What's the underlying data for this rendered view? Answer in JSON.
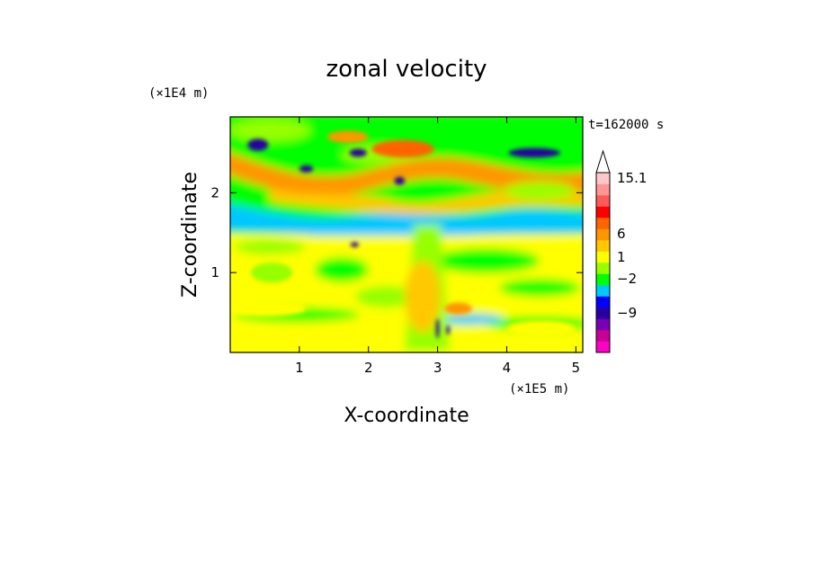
{
  "chart_data": {
    "type": "heatmap",
    "title": "zonal velocity",
    "xlabel": "X-coordinate",
    "ylabel": "Z-coordinate",
    "x_unit": "(×1E5 m)",
    "y_unit": "(×1E4 m)",
    "time_label": "t=162000 s",
    "xlim": [
      0,
      5.1
    ],
    "ylim": [
      0,
      2.95
    ],
    "x_ticks": [
      1,
      2,
      3,
      4,
      5
    ],
    "y_ticks": [
      1,
      2
    ],
    "colorbar": {
      "labeled_levels": [
        {
          "value": 15.1,
          "label": "15.1"
        },
        {
          "value": 6,
          "label": "6"
        },
        {
          "value": 1,
          "label": "1"
        },
        {
          "value": -2,
          "label": "−2"
        },
        {
          "value": -9,
          "label": "−9"
        }
      ],
      "bands_bottom_to_top": [
        "#ff00c8",
        "#c80096",
        "#7800b4",
        "#2800a0",
        "#0000ff",
        "#00c8ff",
        "#00ff00",
        "#96ff00",
        "#ffff00",
        "#ffc800",
        "#ff9600",
        "#ff6400",
        "#ff0000",
        "#ff5a5a",
        "#ff9696",
        "#ffc8c8"
      ],
      "extend_max": true
    },
    "features": [
      {
        "x": 2.5,
        "z": 2.55,
        "w": 0.9,
        "h": 0.22,
        "value": 8
      },
      {
        "x": 1.7,
        "z": 2.7,
        "w": 0.6,
        "h": 0.15,
        "value": 5
      },
      {
        "x": 0.4,
        "z": 2.6,
        "w": 0.3,
        "h": 0.15,
        "value": -10
      },
      {
        "x": 1.1,
        "z": 2.3,
        "w": 0.2,
        "h": 0.09,
        "value": -10
      },
      {
        "x": 1.85,
        "z": 2.5,
        "w": 0.25,
        "h": 0.1,
        "value": -10
      },
      {
        "x": 2.45,
        "z": 2.15,
        "w": 0.15,
        "h": 0.1,
        "value": -10
      },
      {
        "x": 4.4,
        "z": 2.5,
        "w": 0.75,
        "h": 0.12,
        "value": -10
      },
      {
        "x": 1.8,
        "z": 1.35,
        "w": 0.12,
        "h": 0.06,
        "value": -10
      },
      {
        "x": 3.0,
        "z": 0.3,
        "w": 0.05,
        "h": 0.25,
        "value": -10
      },
      {
        "x": 3.15,
        "z": 0.28,
        "w": 0.05,
        "h": 0.12,
        "value": -10
      },
      {
        "x": 3.3,
        "z": 0.55,
        "w": 0.4,
        "h": 0.15,
        "value": 6
      },
      {
        "x": 0.5,
        "z": 0.55,
        "w": 1.2,
        "h": 0.2,
        "value": 0.5
      },
      {
        "x": 4.5,
        "z": 0.3,
        "w": 1.0,
        "h": 0.2,
        "value": 0.5
      },
      {
        "x": 0.6,
        "z": 1.0,
        "w": 0.6,
        "h": 0.25,
        "value": -1
      }
    ]
  }
}
